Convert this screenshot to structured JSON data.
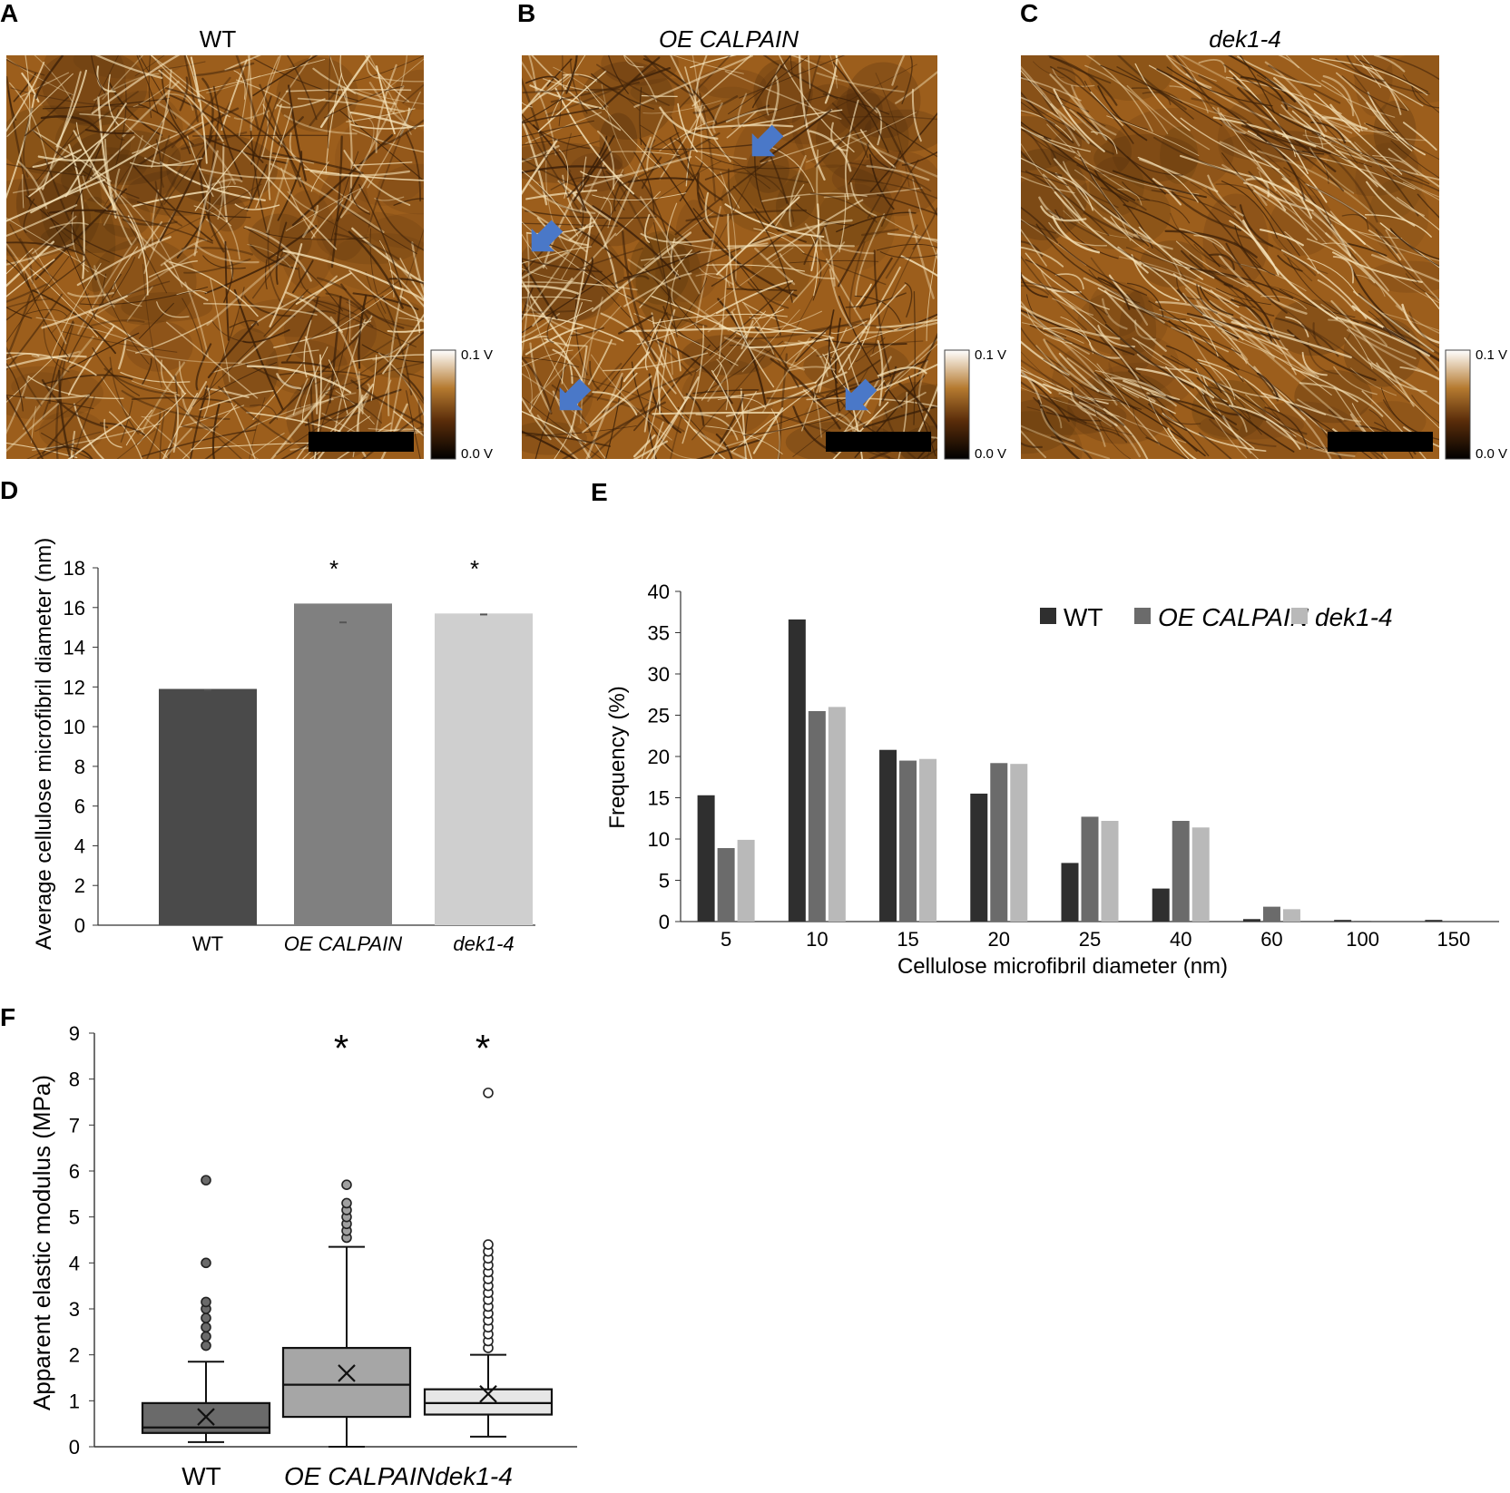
{
  "panels": {
    "A": {
      "letter": "A",
      "title": "WT",
      "colorbar_max": "0.1 V",
      "colorbar_min": "0.0 V"
    },
    "B": {
      "letter": "B",
      "title": "OE CALPAIN",
      "colorbar_max": "0.1 V",
      "colorbar_min": "0.0 V"
    },
    "C": {
      "letter": "C",
      "title": "dek1-4",
      "colorbar_max": "0.1 V",
      "colorbar_min": "0.0 V"
    },
    "D": {
      "letter": "D"
    },
    "E": {
      "letter": "E"
    },
    "F": {
      "letter": "F"
    }
  },
  "colors": {
    "afm_dark": "#3a1f08",
    "afm_mid": "#9c5e1c",
    "afm_light": "#f5e2b8",
    "arrow": "#4a78c8",
    "wt": "#2f2f2f",
    "oe": "#6b6b6b",
    "dek": "#b9b9b9"
  },
  "chart_data": [
    {
      "panel": "D",
      "type": "bar",
      "categories": [
        "WT",
        "OE CALPAIN",
        "dek1-4"
      ],
      "values": [
        11.9,
        16.2,
        15.7
      ],
      "errors": [
        0.05,
        0.95,
        0.05
      ],
      "significance": [
        "",
        "*",
        "*"
      ],
      "ylabel": "Average cellulose microfibril diameter (nm)",
      "ylim": [
        0,
        18
      ],
      "yticks": [
        0,
        2,
        4,
        6,
        8,
        10,
        12,
        14,
        16,
        18
      ],
      "colors": [
        "#4a4a4a",
        "#808080",
        "#cfcfcf"
      ]
    },
    {
      "panel": "E",
      "type": "bar",
      "categories": [
        "5",
        "10",
        "15",
        "20",
        "25",
        "40",
        "60",
        "100",
        "150"
      ],
      "series": [
        {
          "name": "WT",
          "values": [
            15.3,
            36.6,
            20.8,
            15.5,
            7.1,
            4.0,
            0.3,
            0.2,
            0.2
          ]
        },
        {
          "name": "OE CALPAIN",
          "values": [
            8.9,
            25.5,
            19.5,
            19.2,
            12.7,
            12.2,
            1.8,
            0.1,
            0.0
          ]
        },
        {
          "name": "dek1-4",
          "values": [
            9.9,
            26.0,
            19.7,
            19.1,
            12.2,
            11.4,
            1.5,
            0.0,
            0.0
          ]
        }
      ],
      "xlabel": "Cellulose microfibril diameter (nm)",
      "ylabel": "Frequency (%)",
      "ylim": [
        0,
        40
      ],
      "yticks": [
        0,
        5,
        10,
        15,
        20,
        25,
        30,
        35,
        40
      ],
      "legend": "top-right",
      "colors": [
        "#2f2f2f",
        "#6b6b6b",
        "#b9b9b9"
      ]
    },
    {
      "panel": "F",
      "type": "box",
      "categories": [
        "WT",
        "OE CALPAIN",
        "dek1-4"
      ],
      "boxes": [
        {
          "whisker_low": 0.1,
          "q1": 0.3,
          "median": 0.42,
          "q3": 0.95,
          "whisker_high": 1.85,
          "mean": 0.65,
          "outliers": [
            2.2,
            2.4,
            2.6,
            2.8,
            3.0,
            3.15,
            4.0,
            5.8
          ]
        },
        {
          "whisker_low": 0.0,
          "q1": 0.65,
          "median": 1.35,
          "q3": 2.15,
          "whisker_high": 4.35,
          "mean": 1.6,
          "outliers": [
            4.55,
            4.7,
            4.85,
            5.0,
            5.15,
            5.3,
            5.7
          ]
        },
        {
          "whisker_low": 0.22,
          "q1": 0.7,
          "median": 0.95,
          "q3": 1.25,
          "whisker_high": 2.0,
          "mean": 1.15,
          "outliers": [
            2.15,
            2.3,
            2.45,
            2.6,
            2.75,
            2.9,
            3.05,
            3.2,
            3.35,
            3.5,
            3.65,
            3.8,
            3.95,
            4.1,
            4.25,
            4.4,
            7.7
          ]
        }
      ],
      "significance": [
        "",
        "*",
        "*"
      ],
      "ylabel": "Apparent elastic modulus (MPa)",
      "ylim": [
        0,
        9
      ],
      "yticks": [
        0,
        1,
        2,
        3,
        4,
        5,
        6,
        7,
        8,
        9
      ],
      "colors": [
        "#6a6a6a",
        "#a6a6a6",
        "#e6e6e6"
      ]
    }
  ]
}
